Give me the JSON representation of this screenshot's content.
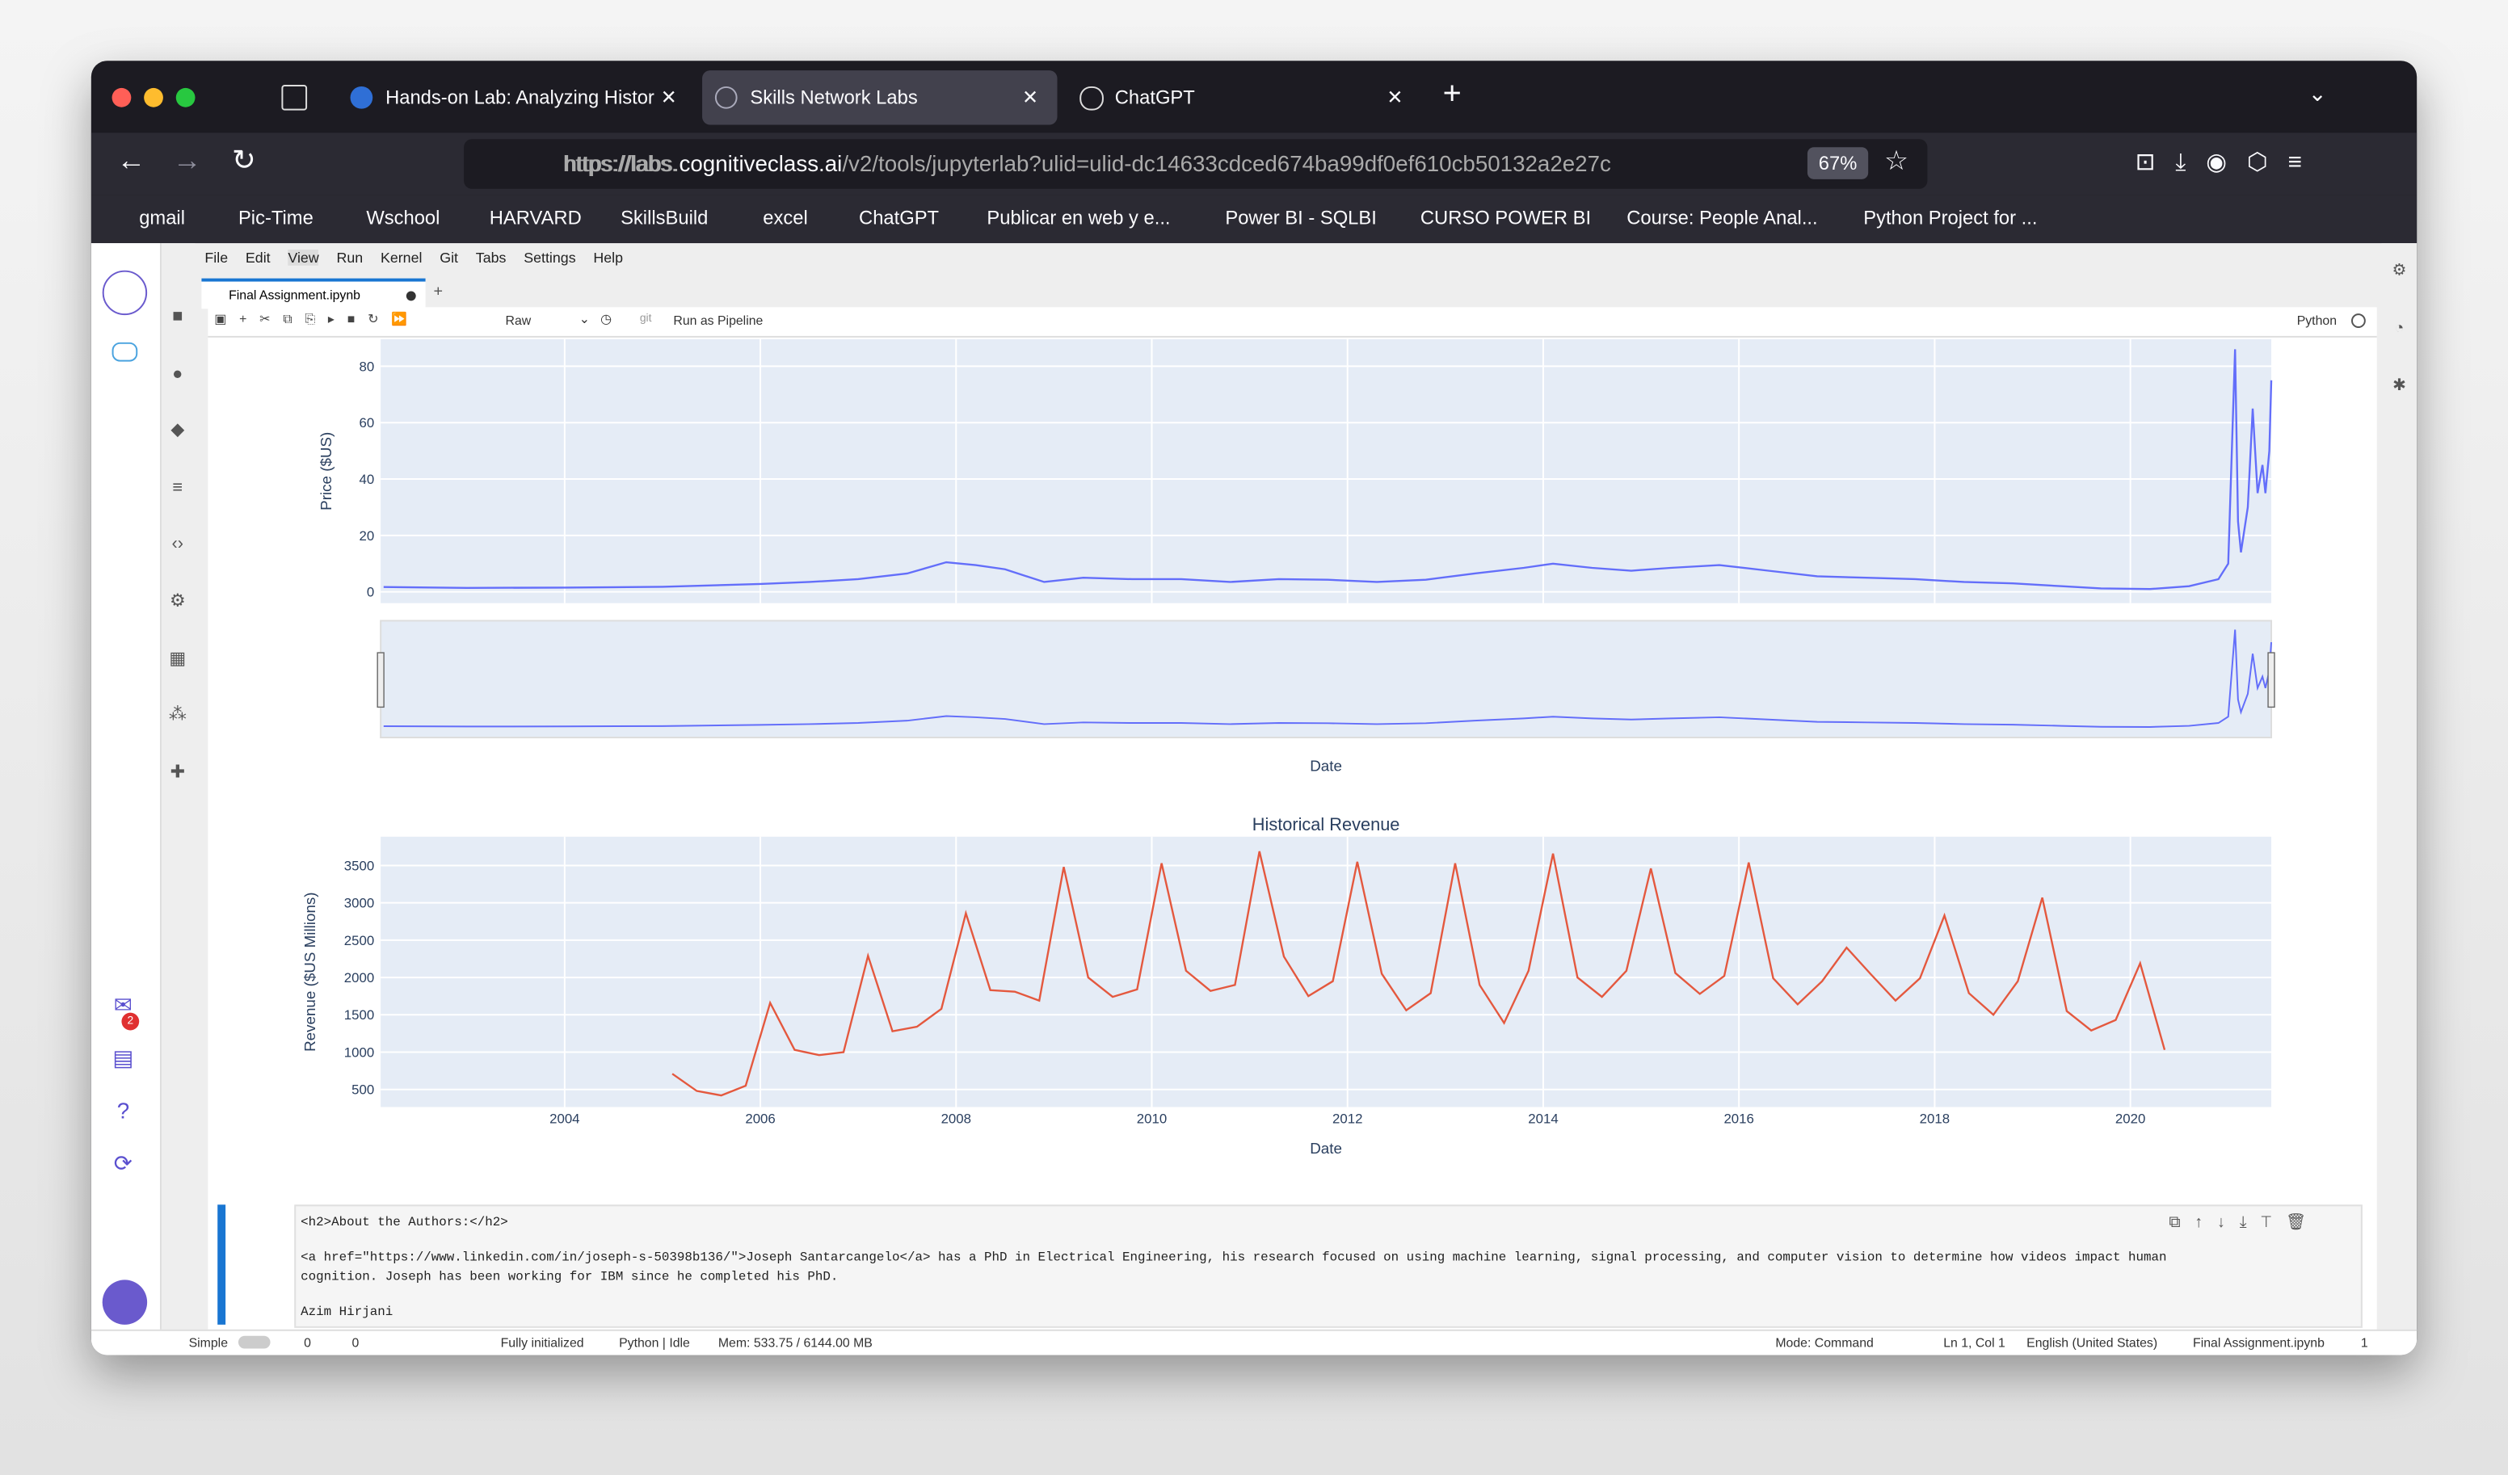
{
  "browser": {
    "tabs": [
      "Hands-on Lab: Analyzing Histor",
      "Skills Network Labs",
      "ChatGPT"
    ],
    "url_prefix": "https://labs.",
    "url_domain": "cognitiveclass.ai",
    "url_path": "/v2/tools/jupyterlab?ulid=ulid-dc14633cdced674ba99df0ef610cb50132a2e27c",
    "zoom": "67%",
    "bookmarks": [
      "gmail",
      "Pic-Time",
      "Wschool",
      "HARVARD",
      "SkillsBuild",
      "excel",
      "ChatGPT",
      "Publicar en web y e...",
      "Power BI - SQLBI",
      "CURSO POWER BI",
      "Course: People Anal...",
      "Python Project for ..."
    ]
  },
  "jupyter": {
    "menu": [
      "File",
      "Edit",
      "View",
      "Run",
      "Kernel",
      "Git",
      "Tabs",
      "Settings",
      "Help"
    ],
    "notebook_tab": "Final Assignment.ipynb",
    "cell_type": "Raw",
    "git": "git",
    "run_pipeline": "Run as Pipeline",
    "kernel": "Python",
    "badge": "2",
    "cell_lines": [
      "<h2>About the Authors:</h2>",
      "<a href=\"https://www.linkedin.com/in/joseph-s-50398b136/\">Joseph Santarcangelo</a> has a PhD in Electrical Engineering, his research focused on using machine learning, signal processing, and computer vision to determine how videos impact human",
      "cognition. Joseph has been working for IBM since he completed his PhD.",
      "Azim Hirjani"
    ],
    "status": {
      "mode_switch": "Simple",
      "count_a": "0",
      "count_b": "0",
      "init": "Fully initialized",
      "kernel_state": "Python | Idle",
      "mem": "Mem: 533.75 / 6144.00 MB",
      "mode": "Mode: Command",
      "position": "Ln 1, Col 1",
      "language": "English (United States)",
      "file": "Final Assignment.ipynb",
      "tabs_count": "1"
    }
  },
  "chart_data": [
    {
      "type": "line",
      "ylabel": "Price ($US)",
      "xlabel": "Date",
      "color": "#636efa",
      "grid": true,
      "range_slider": true,
      "xlim": [
        2002.12,
        2021.44
      ],
      "ylim": [
        -4,
        89.6
      ],
      "xticks": [
        2004,
        2006,
        2008,
        2010,
        2012,
        2014,
        2016,
        2018,
        2020
      ],
      "yticks": [
        0,
        20,
        40,
        60,
        80
      ],
      "x": [
        2002.15,
        2003,
        2004,
        2005,
        2006,
        2006.5,
        2007,
        2007.5,
        2007.9,
        2008.2,
        2008.5,
        2008.9,
        2009.3,
        2009.8,
        2010.3,
        2010.8,
        2011.3,
        2011.8,
        2012.3,
        2012.8,
        2013.3,
        2013.8,
        2014.1,
        2014.5,
        2014.9,
        2015.3,
        2015.8,
        2016.3,
        2016.8,
        2017.3,
        2017.8,
        2018.3,
        2018.8,
        2019.3,
        2019.7,
        2020.2,
        2020.6,
        2020.9,
        2021.0,
        2021.07,
        2021.1,
        2021.13,
        2021.2,
        2021.25,
        2021.3,
        2021.35,
        2021.38,
        2021.42,
        2021.44
      ],
      "values": [
        1.7,
        1.4,
        1.5,
        1.8,
        2.8,
        3.5,
        4.5,
        6.5,
        10.5,
        9.5,
        8,
        3.5,
        5,
        4.5,
        4.5,
        3.5,
        4.5,
        4.3,
        3.5,
        4.3,
        6.5,
        8.5,
        10,
        8.5,
        7.5,
        8.5,
        9.5,
        7.5,
        5.5,
        5,
        4.5,
        3.5,
        3,
        2,
        1.2,
        1,
        2,
        4.5,
        10,
        86,
        25,
        14,
        30,
        65,
        35,
        45,
        35,
        50,
        75
      ]
    },
    {
      "type": "line",
      "title": "Historical Revenue",
      "ylabel": "Revenue ($US Millions)",
      "xlabel": "Date",
      "color": "#e4583e",
      "grid": true,
      "xlim": [
        2002.12,
        2021.44
      ],
      "ylim": [
        264,
        3886
      ],
      "xticks": [
        2004,
        2006,
        2008,
        2010,
        2012,
        2014,
        2016,
        2018,
        2020
      ],
      "yticks": [
        500,
        1000,
        1500,
        2000,
        2500,
        3000,
        3500
      ],
      "x": [
        2005.1,
        2005.35,
        2005.6,
        2005.85,
        2006.1,
        2006.35,
        2006.6,
        2006.85,
        2007.1,
        2007.35,
        2007.6,
        2007.85,
        2008.1,
        2008.35,
        2008.6,
        2008.85,
        2009.1,
        2009.35,
        2009.6,
        2009.85,
        2010.1,
        2010.35,
        2010.6,
        2010.85,
        2011.1,
        2011.35,
        2011.6,
        2011.85,
        2012.1,
        2012.35,
        2012.6,
        2012.85,
        2013.1,
        2013.35,
        2013.6,
        2013.85,
        2014.1,
        2014.35,
        2014.6,
        2014.85,
        2015.1,
        2015.35,
        2015.6,
        2015.85,
        2016.1,
        2016.35,
        2016.6,
        2016.85,
        2017.1,
        2017.35,
        2017.6,
        2017.85,
        2018.1,
        2018.35,
        2018.6,
        2018.85,
        2019.1,
        2019.35,
        2019.6,
        2019.85,
        2020.1,
        2020.35
      ],
      "values": [
        710,
        480,
        420,
        550,
        1660,
        1030,
        960,
        1000,
        2290,
        1280,
        1340,
        1580,
        2860,
        1830,
        1810,
        1690,
        3480,
        2000,
        1740,
        1840,
        3530,
        2090,
        1820,
        1900,
        3690,
        2280,
        1750,
        1950,
        3550,
        2050,
        1560,
        1790,
        3530,
        1900,
        1390,
        2090,
        3660,
        2000,
        1740,
        2090,
        3460,
        2060,
        1780,
        2020,
        3540,
        1990,
        1640,
        1950,
        2400,
        2040,
        1690,
        1990,
        2830,
        1790,
        1500,
        1950,
        3070,
        1550,
        1290,
        1430,
        2190,
        1030
      ]
    }
  ]
}
